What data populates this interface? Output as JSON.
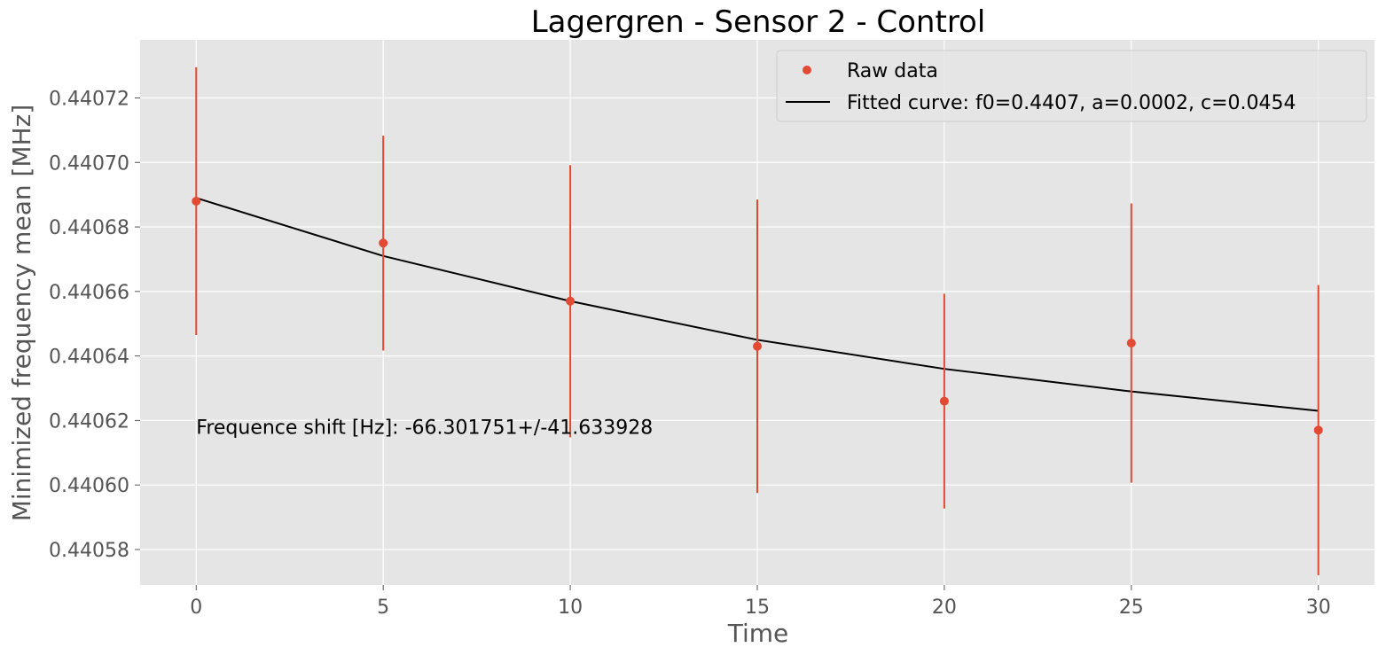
{
  "chart_data": {
    "type": "scatter",
    "title": "Lagergren - Sensor 2  - Control",
    "xlabel": "Time",
    "ylabel": "Minimized frequency mean [MHz]",
    "xlim": [
      -1.5,
      31.5
    ],
    "ylim": [
      0.440569,
      0.440738
    ],
    "xticks": [
      0,
      5,
      10,
      15,
      20,
      25,
      30
    ],
    "xtick_labels": [
      "0",
      "5",
      "10",
      "15",
      "20",
      "25",
      "30"
    ],
    "yticks": [
      0.44058,
      0.4406,
      0.44062,
      0.44064,
      0.44066,
      0.44068,
      0.4407,
      0.44072
    ],
    "ytick_labels": [
      "0.44058",
      "0.44060",
      "0.44062",
      "0.44064",
      "0.44066",
      "0.44068",
      "0.44070",
      "0.44072"
    ],
    "grid": true,
    "legend_position": "top-right",
    "series": [
      {
        "name": "Raw data",
        "kind": "errorbar-scatter",
        "color": "#e24a33",
        "x": [
          0,
          5,
          10,
          15,
          20,
          25,
          30
        ],
        "y": [
          0.440688,
          0.440675,
          0.440657,
          0.440643,
          0.440626,
          0.440644,
          0.440617
        ],
        "yerr": [
          4.15e-05,
          3.33e-05,
          4.22e-05,
          4.55e-05,
          3.33e-05,
          4.33e-05,
          4.5e-05
        ]
      },
      {
        "name": "Fitted curve: f0=0.4407, a=0.0002, c=0.0454",
        "kind": "line",
        "color": "#000000",
        "x": [
          0,
          5,
          10,
          15,
          20,
          25,
          30
        ],
        "y": [
          0.440689,
          0.440671,
          0.440657,
          0.440645,
          0.440636,
          0.440629,
          0.440623
        ]
      }
    ],
    "annotation": {
      "text": "Frequence shift [Hz]:    -66.301751+/-41.633928",
      "x": 0,
      "y": 0.440618
    }
  }
}
